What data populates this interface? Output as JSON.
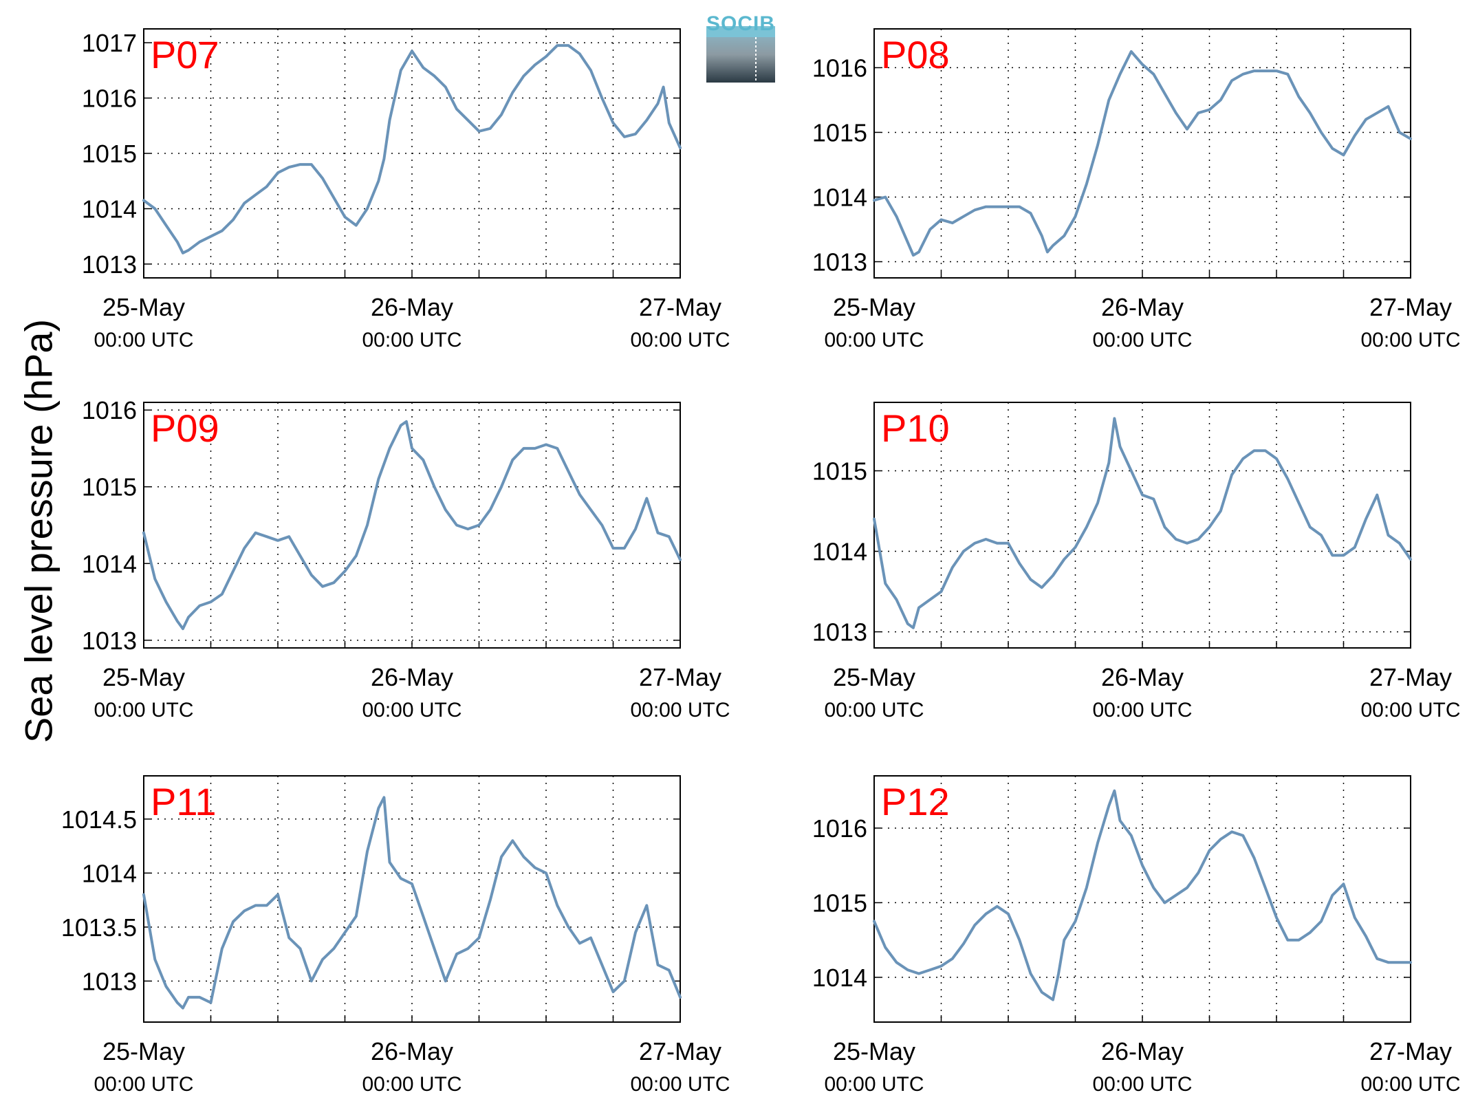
{
  "figure": {
    "ylabel": "Sea level pressure (hPa)",
    "logo_text": "SOCIB"
  },
  "style": {
    "line_color": "#6a93b8",
    "panel_label_color": "#ff0000"
  },
  "chart_data": [
    {
      "type": "line",
      "panel_label": "P07",
      "x_range": [
        "2023-05-25 00:00",
        "2023-05-27 00:00"
      ],
      "xticks": [
        {
          "date": "25-May",
          "time": "00:00 UTC"
        },
        {
          "date": "26-May",
          "time": "00:00 UTC"
        },
        {
          "date": "27-May",
          "time": "00:00 UTC"
        }
      ],
      "yticks": [
        "1013",
        "1014",
        "1015",
        "1016",
        "1017"
      ],
      "ylim": [
        1012.75,
        1017.25
      ],
      "grid": true,
      "series": [
        {
          "hours": [
            0,
            1,
            2,
            3,
            3.5,
            4,
            5,
            6,
            7,
            8,
            9,
            10,
            11,
            12,
            13,
            14,
            15,
            16,
            17,
            18,
            19,
            20,
            21,
            21.5,
            22,
            23,
            24,
            25,
            26,
            27,
            28,
            29,
            30,
            31,
            32,
            33,
            34,
            35,
            36,
            37,
            38,
            39,
            40,
            41,
            42,
            43,
            44,
            45,
            46,
            46.5,
            47,
            48
          ],
          "values": [
            1014.15,
            1014.0,
            1013.7,
            1013.4,
            1013.2,
            1013.25,
            1013.4,
            1013.5,
            1013.6,
            1013.8,
            1014.1,
            1014.25,
            1014.4,
            1014.65,
            1014.75,
            1014.8,
            1014.8,
            1014.55,
            1014.2,
            1013.85,
            1013.7,
            1014.0,
            1014.5,
            1014.9,
            1015.6,
            1016.5,
            1016.85,
            1016.55,
            1016.4,
            1016.2,
            1015.8,
            1015.6,
            1015.4,
            1015.45,
            1015.7,
            1016.1,
            1016.4,
            1016.6,
            1016.75,
            1016.95,
            1016.95,
            1016.8,
            1016.5,
            1016.0,
            1015.55,
            1015.3,
            1015.35,
            1015.6,
            1015.9,
            1016.2,
            1015.55,
            1015.1
          ]
        }
      ]
    },
    {
      "type": "line",
      "panel_label": "P08",
      "x_range": [
        "2023-05-25 00:00",
        "2023-05-27 00:00"
      ],
      "xticks": [
        {
          "date": "25-May",
          "time": "00:00 UTC"
        },
        {
          "date": "26-May",
          "time": "00:00 UTC"
        },
        {
          "date": "27-May",
          "time": "00:00 UTC"
        }
      ],
      "yticks": [
        "1013",
        "1014",
        "1015",
        "1016"
      ],
      "ylim": [
        1012.75,
        1016.6
      ],
      "grid": true,
      "series": [
        {
          "hours": [
            0,
            1,
            2,
            3,
            3.5,
            4,
            5,
            6,
            7,
            8,
            9,
            10,
            11,
            12,
            13,
            14,
            15,
            15.5,
            16,
            17,
            18,
            19,
            20,
            21,
            22,
            23,
            24,
            25,
            26,
            27,
            28,
            29,
            30,
            31,
            32,
            33,
            34,
            35,
            36,
            37,
            38,
            39,
            40,
            41,
            42,
            43,
            44,
            45,
            46,
            47,
            48
          ],
          "values": [
            1013.95,
            1014.0,
            1013.7,
            1013.3,
            1013.1,
            1013.15,
            1013.5,
            1013.65,
            1013.6,
            1013.7,
            1013.8,
            1013.85,
            1013.85,
            1013.85,
            1013.85,
            1013.75,
            1013.4,
            1013.15,
            1013.25,
            1013.4,
            1013.7,
            1014.2,
            1014.8,
            1015.5,
            1015.9,
            1016.25,
            1016.05,
            1015.9,
            1015.6,
            1015.3,
            1015.05,
            1015.3,
            1015.35,
            1015.5,
            1015.8,
            1015.9,
            1015.95,
            1015.95,
            1015.95,
            1015.9,
            1015.55,
            1015.3,
            1015.0,
            1014.75,
            1014.65,
            1014.95,
            1015.2,
            1015.3,
            1015.4,
            1015.0,
            1014.9
          ]
        }
      ]
    },
    {
      "type": "line",
      "panel_label": "P09",
      "x_range": [
        "2023-05-25 00:00",
        "2023-05-27 00:00"
      ],
      "xticks": [
        {
          "date": "25-May",
          "time": "00:00 UTC"
        },
        {
          "date": "26-May",
          "time": "00:00 UTC"
        },
        {
          "date": "27-May",
          "time": "00:00 UTC"
        }
      ],
      "yticks": [
        "1013",
        "1014",
        "1015",
        "1016"
      ],
      "ylim": [
        1012.9,
        1016.1
      ],
      "grid": true,
      "series": [
        {
          "hours": [
            0,
            1,
            2,
            3,
            3.5,
            4,
            5,
            6,
            7,
            8,
            9,
            10,
            11,
            12,
            13,
            14,
            15,
            16,
            17,
            18,
            19,
            20,
            21,
            22,
            23,
            23.5,
            24,
            25,
            26,
            27,
            28,
            29,
            30,
            31,
            32,
            33,
            34,
            35,
            36,
            37,
            38,
            39,
            40,
            41,
            42,
            43,
            44,
            45,
            46,
            47,
            48
          ],
          "values": [
            1014.4,
            1013.8,
            1013.5,
            1013.25,
            1013.15,
            1013.3,
            1013.45,
            1013.5,
            1013.6,
            1013.9,
            1014.2,
            1014.4,
            1014.35,
            1014.3,
            1014.35,
            1014.1,
            1013.85,
            1013.7,
            1013.75,
            1013.9,
            1014.1,
            1014.5,
            1015.1,
            1015.5,
            1015.8,
            1015.85,
            1015.5,
            1015.35,
            1015.0,
            1014.7,
            1014.5,
            1014.45,
            1014.5,
            1014.7,
            1015.0,
            1015.35,
            1015.5,
            1015.5,
            1015.55,
            1015.5,
            1015.2,
            1014.9,
            1014.7,
            1014.5,
            1014.2,
            1014.2,
            1014.45,
            1014.85,
            1014.4,
            1014.35,
            1014.05
          ]
        }
      ]
    },
    {
      "type": "line",
      "panel_label": "P10",
      "x_range": [
        "2023-05-25 00:00",
        "2023-05-27 00:00"
      ],
      "xticks": [
        {
          "date": "25-May",
          "time": "00:00 UTC"
        },
        {
          "date": "26-May",
          "time": "00:00 UTC"
        },
        {
          "date": "27-May",
          "time": "00:00 UTC"
        }
      ],
      "yticks": [
        "1013",
        "1014",
        "1015"
      ],
      "ylim": [
        1012.8,
        1015.85
      ],
      "grid": true,
      "series": [
        {
          "hours": [
            0,
            1,
            2,
            3,
            3.5,
            4,
            5,
            6,
            7,
            8,
            9,
            10,
            11,
            12,
            13,
            14,
            15,
            16,
            17,
            18,
            19,
            20,
            21,
            21.5,
            22,
            23,
            24,
            25,
            26,
            27,
            28,
            29,
            30,
            31,
            32,
            33,
            34,
            35,
            36,
            37,
            38,
            39,
            40,
            41,
            42,
            43,
            44,
            45,
            46,
            47,
            48
          ],
          "values": [
            1014.4,
            1013.6,
            1013.4,
            1013.1,
            1013.05,
            1013.3,
            1013.4,
            1013.5,
            1013.8,
            1014.0,
            1014.1,
            1014.15,
            1014.1,
            1014.1,
            1013.85,
            1013.65,
            1013.55,
            1013.7,
            1013.9,
            1014.05,
            1014.3,
            1014.6,
            1015.1,
            1015.65,
            1015.3,
            1015.0,
            1014.7,
            1014.65,
            1014.3,
            1014.15,
            1014.1,
            1014.15,
            1014.3,
            1014.5,
            1014.95,
            1015.15,
            1015.25,
            1015.25,
            1015.15,
            1014.9,
            1014.6,
            1014.3,
            1014.2,
            1013.95,
            1013.95,
            1014.05,
            1014.4,
            1014.7,
            1014.2,
            1014.1,
            1013.9
          ]
        }
      ]
    },
    {
      "type": "line",
      "panel_label": "P11",
      "x_range": [
        "2023-05-25 00:00",
        "2023-05-27 00:00"
      ],
      "xticks": [
        {
          "date": "25-May",
          "time": "00:00 UTC"
        },
        {
          "date": "26-May",
          "time": "00:00 UTC"
        },
        {
          "date": "27-May",
          "time": "00:00 UTC"
        }
      ],
      "yticks": [
        "1013",
        "1013.5",
        "1014",
        "1014.5"
      ],
      "ylim": [
        1012.62,
        1014.9
      ],
      "grid": true,
      "series": [
        {
          "hours": [
            0,
            1,
            2,
            3,
            3.5,
            4,
            5,
            6,
            7,
            8,
            9,
            10,
            11,
            12,
            13,
            14,
            15,
            16,
            17,
            18,
            19,
            20,
            21,
            21.5,
            22,
            23,
            24,
            25,
            26,
            27,
            28,
            29,
            30,
            31,
            32,
            33,
            34,
            35,
            36,
            37,
            38,
            39,
            40,
            41,
            42,
            43,
            44,
            45,
            46,
            47,
            48
          ],
          "values": [
            1013.8,
            1013.2,
            1012.95,
            1012.8,
            1012.75,
            1012.85,
            1012.85,
            1012.8,
            1013.3,
            1013.55,
            1013.65,
            1013.7,
            1013.7,
            1013.8,
            1013.4,
            1013.3,
            1013.0,
            1013.2,
            1013.3,
            1013.45,
            1013.6,
            1014.2,
            1014.6,
            1014.7,
            1014.1,
            1013.95,
            1013.9,
            1013.6,
            1013.3,
            1013.0,
            1013.25,
            1013.3,
            1013.4,
            1013.75,
            1014.15,
            1014.3,
            1014.15,
            1014.05,
            1014.0,
            1013.7,
            1013.5,
            1013.35,
            1013.4,
            1013.15,
            1012.9,
            1013.0,
            1013.45,
            1013.7,
            1013.15,
            1013.1,
            1012.85
          ]
        }
      ]
    },
    {
      "type": "line",
      "panel_label": "P12",
      "x_range": [
        "2023-05-25 00:00",
        "2023-05-27 00:00"
      ],
      "xticks": [
        {
          "date": "25-May",
          "time": "00:00 UTC"
        },
        {
          "date": "26-May",
          "time": "00:00 UTC"
        },
        {
          "date": "27-May",
          "time": "00:00 UTC"
        }
      ],
      "yticks": [
        "1014",
        "1015",
        "1016"
      ],
      "ylim": [
        1013.4,
        1016.7
      ],
      "grid": true,
      "series": [
        {
          "hours": [
            0,
            1,
            2,
            3,
            4,
            5,
            6,
            7,
            8,
            9,
            10,
            11,
            12,
            13,
            14,
            15,
            16,
            16.5,
            17,
            18,
            19,
            20,
            21,
            21.5,
            22,
            23,
            24,
            25,
            26,
            27,
            28,
            29,
            30,
            31,
            32,
            33,
            34,
            35,
            36,
            37,
            38,
            39,
            40,
            41,
            42,
            43,
            44,
            45,
            46,
            47,
            48
          ],
          "values": [
            1014.75,
            1014.4,
            1014.2,
            1014.1,
            1014.05,
            1014.1,
            1014.15,
            1014.25,
            1014.45,
            1014.7,
            1014.85,
            1014.95,
            1014.85,
            1014.5,
            1014.05,
            1013.8,
            1013.7,
            1014.05,
            1014.5,
            1014.75,
            1015.2,
            1015.8,
            1016.3,
            1016.5,
            1016.1,
            1015.9,
            1015.5,
            1015.2,
            1015.0,
            1015.1,
            1015.2,
            1015.4,
            1015.7,
            1015.85,
            1015.95,
            1015.9,
            1015.6,
            1015.2,
            1014.8,
            1014.5,
            1014.5,
            1014.6,
            1014.75,
            1015.1,
            1015.25,
            1014.8,
            1014.55,
            1014.25,
            1014.2,
            1014.2,
            1014.2
          ]
        }
      ]
    }
  ]
}
